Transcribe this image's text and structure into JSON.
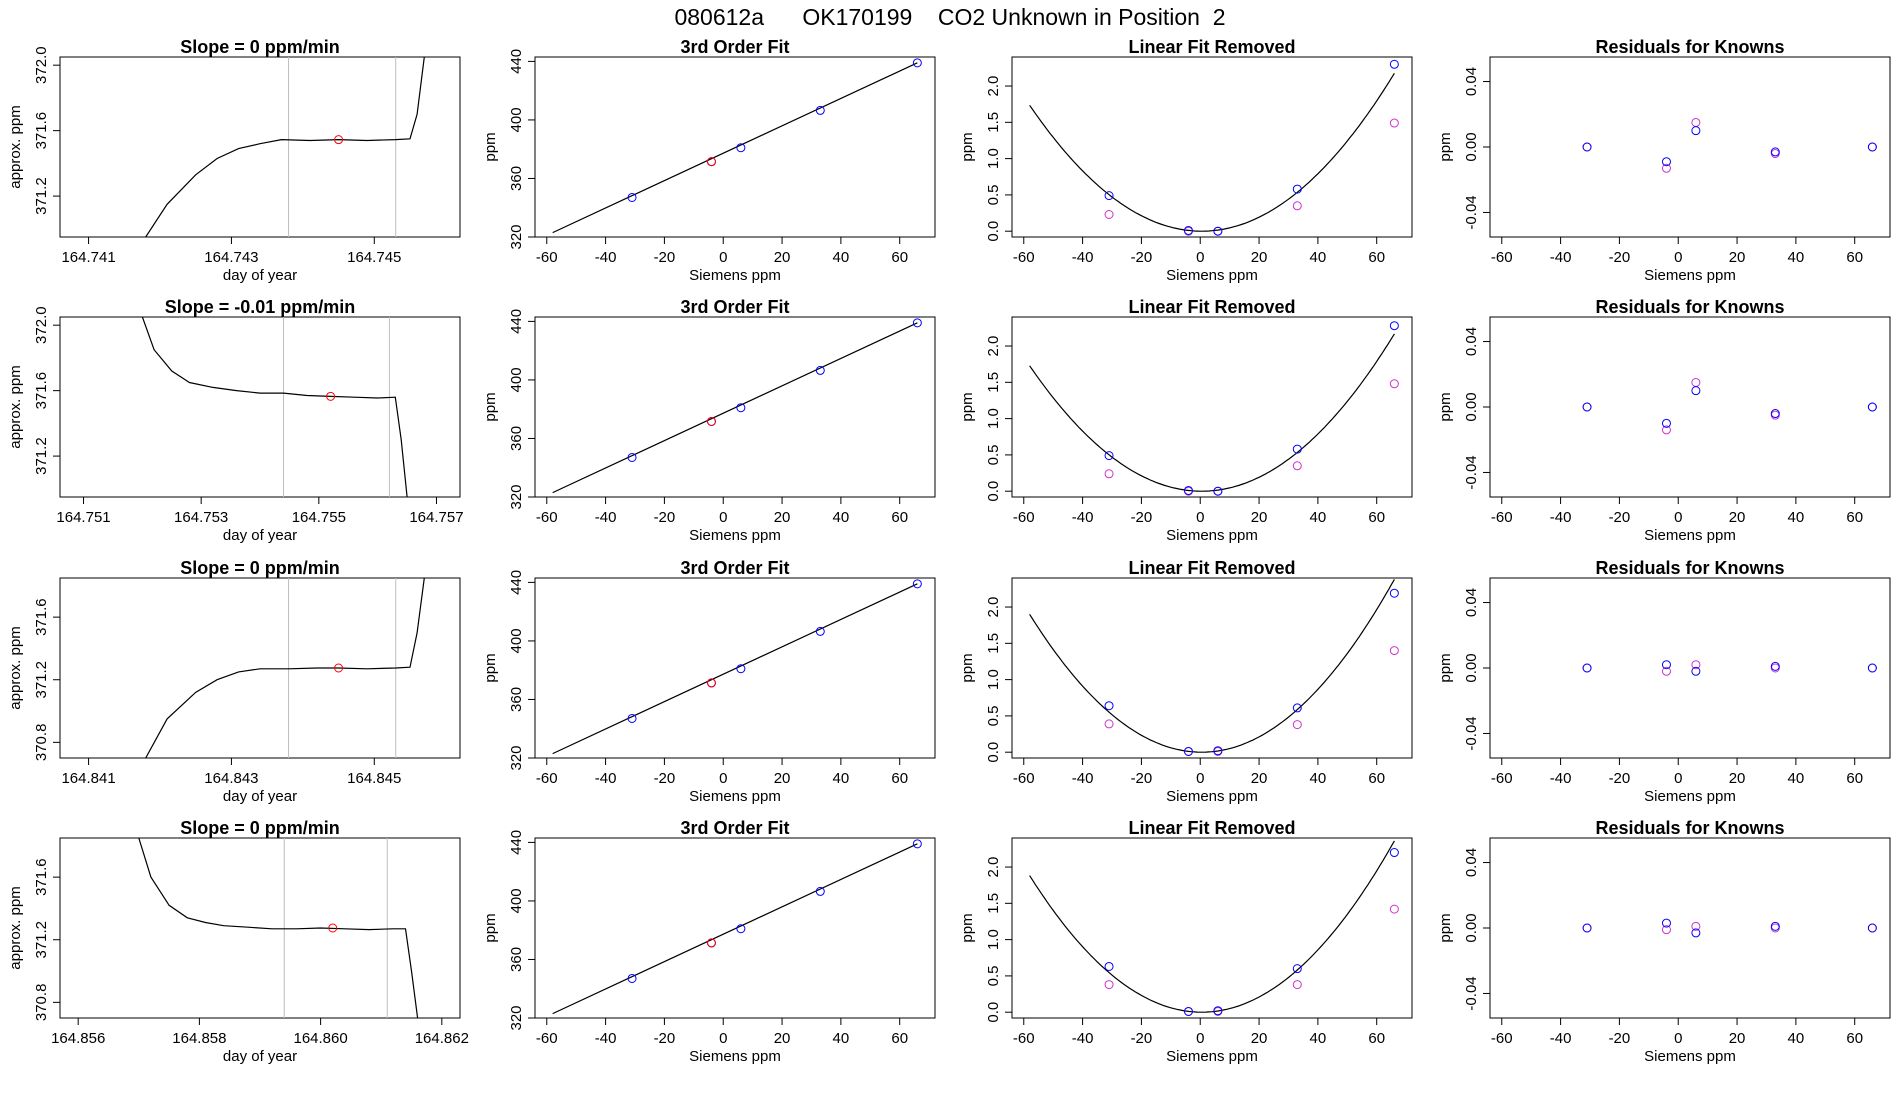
{
  "title": "080612a      OK170199    CO2 Unknown in Position  2",
  "colors": {
    "blue": "#0000ff",
    "magenta": "#cc33cc",
    "red": "#ff0000",
    "vline": "#bebebe",
    "line": "#000000"
  },
  "chart_data": [
    {
      "type": "line",
      "title": "Slope =  0  ppm/min",
      "xlabel": "day of year",
      "ylabel": "approx. ppm",
      "xlim": [
        164.7406,
        164.7462
      ],
      "ylim": [
        370.95,
        372.05
      ],
      "xticks": [
        "164.741",
        "164.743",
        "164.745"
      ],
      "yticks": [
        "371.2",
        "371.6",
        "372.0"
      ],
      "ytick_values": [
        371.2,
        371.6,
        372.0
      ],
      "vlines": [
        164.7438,
        164.7453
      ],
      "marker": {
        "x": 164.7445,
        "y": 371.545
      },
      "trace": [
        [
          164.7418,
          370.95
        ],
        [
          164.7421,
          371.15
        ],
        [
          164.7425,
          371.33
        ],
        [
          164.7428,
          371.43
        ],
        [
          164.7431,
          371.49
        ],
        [
          164.7434,
          371.52
        ],
        [
          164.7437,
          371.545
        ],
        [
          164.7441,
          371.54
        ],
        [
          164.7445,
          371.545
        ],
        [
          164.7449,
          371.54
        ],
        [
          164.7453,
          371.545
        ],
        [
          164.7455,
          371.55
        ],
        [
          164.7456,
          371.7
        ],
        [
          164.7457,
          372.05
        ]
      ]
    },
    {
      "type": "scatter",
      "title": "3rd Order Fit",
      "xlabel": "Siemens ppm",
      "ylabel": "ppm",
      "xlim": [
        -64,
        72
      ],
      "ylim": [
        320,
        443
      ],
      "xticks": [
        "-60",
        "-40",
        "-20",
        "0",
        "20",
        "40",
        "60"
      ],
      "yticks": [
        "320",
        "360",
        "400",
        "440"
      ],
      "fit": [
        [
          -58,
          323
        ],
        [
          66,
          439
        ]
      ],
      "points_blue": [
        [
          -31,
          347
        ],
        [
          -4,
          371.5
        ],
        [
          6,
          381
        ],
        [
          33,
          406.5
        ],
        [
          66,
          439
        ]
      ],
      "points_red": [
        [
          -4,
          371.5
        ]
      ]
    },
    {
      "type": "scatter",
      "title": "Linear Fit Removed",
      "xlabel": "Siemens ppm",
      "ylabel": "ppm",
      "xlim": [
        -64,
        72
      ],
      "ylim": [
        -0.08,
        2.4
      ],
      "xticks": [
        "-60",
        "-40",
        "-20",
        "0",
        "20",
        "40",
        "60"
      ],
      "yticks": [
        "0.0",
        "0.5",
        "1.0",
        "1.5",
        "2.0"
      ],
      "ytick_values": [
        0,
        0.5,
        1.0,
        1.5,
        2.0
      ],
      "curve_vertex": 0.5,
      "curve_a": 0.000507,
      "points_blue": [
        [
          -31,
          0.49
        ],
        [
          -4,
          0.01
        ],
        [
          6,
          0.0
        ],
        [
          33,
          0.58
        ],
        [
          66,
          2.3
        ]
      ],
      "points_magenta": [
        [
          -31,
          0.23
        ],
        [
          -4,
          0.0
        ],
        [
          6,
          0.0
        ],
        [
          33,
          0.35
        ],
        [
          66,
          1.49
        ]
      ]
    },
    {
      "type": "scatter",
      "title": "Residuals for Knowns",
      "xlabel": "Siemens ppm",
      "ylabel": "ppm",
      "xlim": [
        -64,
        72
      ],
      "ylim": [
        -0.055,
        0.055
      ],
      "xticks": [
        "-60",
        "-40",
        "-20",
        "0",
        "20",
        "40",
        "60"
      ],
      "yticks": [
        "-0.04",
        "0.00",
        "0.04"
      ],
      "ytick_values": [
        -0.04,
        0.0,
        0.04
      ],
      "points_blue": [
        [
          -31,
          0.0
        ],
        [
          -4,
          -0.009
        ],
        [
          6,
          0.01
        ],
        [
          33,
          -0.003
        ],
        [
          66,
          0.0
        ]
      ],
      "points_magenta": [
        [
          -31,
          0.0
        ],
        [
          -4,
          -0.013
        ],
        [
          6,
          0.015
        ],
        [
          33,
          -0.004
        ],
        [
          66,
          0.0
        ]
      ]
    },
    {
      "type": "line",
      "title": "Slope =  -0.01  ppm/min",
      "xlabel": "day of year",
      "ylabel": "approx. ppm",
      "xlim": [
        164.7506,
        164.7574
      ],
      "ylim": [
        370.95,
        372.05
      ],
      "xticks": [
        "164.751",
        "164.753",
        "164.755",
        "164.757"
      ],
      "yticks": [
        "371.2",
        "371.6",
        "372.0"
      ],
      "ytick_values": [
        371.2,
        371.6,
        372.0
      ],
      "vlines": [
        164.7544,
        164.7562
      ],
      "marker": {
        "x": 164.7552,
        "y": 371.565
      },
      "trace": [
        [
          164.752,
          372.05
        ],
        [
          164.7522,
          371.85
        ],
        [
          164.7525,
          371.72
        ],
        [
          164.7528,
          371.65
        ],
        [
          164.7532,
          371.62
        ],
        [
          164.7536,
          371.6
        ],
        [
          164.754,
          371.585
        ],
        [
          164.7544,
          371.585
        ],
        [
          164.7548,
          371.57
        ],
        [
          164.7552,
          371.565
        ],
        [
          164.7556,
          371.56
        ],
        [
          164.756,
          371.555
        ],
        [
          164.7563,
          371.56
        ],
        [
          164.7564,
          371.3
        ],
        [
          164.7565,
          370.95
        ]
      ]
    },
    {
      "type": "scatter",
      "title": "3rd Order Fit",
      "xlabel": "Siemens ppm",
      "ylabel": "ppm",
      "xlim": [
        -64,
        72
      ],
      "ylim": [
        320,
        443
      ],
      "xticks": [
        "-60",
        "-40",
        "-20",
        "0",
        "20",
        "40",
        "60"
      ],
      "yticks": [
        "320",
        "360",
        "400",
        "440"
      ],
      "fit": [
        [
          -58,
          323
        ],
        [
          66,
          439
        ]
      ],
      "points_blue": [
        [
          -31,
          347
        ],
        [
          -4,
          371.6
        ],
        [
          6,
          381
        ],
        [
          33,
          406.5
        ],
        [
          66,
          439
        ]
      ],
      "points_red": [
        [
          -4,
          371.6
        ]
      ]
    },
    {
      "type": "scatter",
      "title": "Linear Fit Removed",
      "xlabel": "Siemens ppm",
      "ylabel": "ppm",
      "xlim": [
        -64,
        72
      ],
      "ylim": [
        -0.08,
        2.4
      ],
      "xticks": [
        "-60",
        "-40",
        "-20",
        "0",
        "20",
        "40",
        "60"
      ],
      "yticks": [
        "0.0",
        "0.5",
        "1.0",
        "1.5",
        "2.0"
      ],
      "ytick_values": [
        0,
        0.5,
        1.0,
        1.5,
        2.0
      ],
      "curve_vertex": 0.5,
      "curve_a": 0.000505,
      "points_blue": [
        [
          -31,
          0.49
        ],
        [
          -4,
          0.01
        ],
        [
          6,
          0.0
        ],
        [
          33,
          0.58
        ],
        [
          66,
          2.28
        ]
      ],
      "points_magenta": [
        [
          -31,
          0.24
        ],
        [
          -4,
          0.0
        ],
        [
          6,
          0.0
        ],
        [
          33,
          0.35
        ],
        [
          66,
          1.48
        ]
      ]
    },
    {
      "type": "scatter",
      "title": "Residuals for Knowns",
      "xlabel": "Siemens ppm",
      "ylabel": "ppm",
      "xlim": [
        -64,
        72
      ],
      "ylim": [
        -0.055,
        0.055
      ],
      "xticks": [
        "-60",
        "-40",
        "-20",
        "0",
        "20",
        "40",
        "60"
      ],
      "yticks": [
        "-0.04",
        "0.00",
        "0.04"
      ],
      "ytick_values": [
        -0.04,
        0.0,
        0.04
      ],
      "points_blue": [
        [
          -31,
          0.0
        ],
        [
          -4,
          -0.01
        ],
        [
          6,
          0.01
        ],
        [
          33,
          -0.004
        ],
        [
          66,
          0.0
        ]
      ],
      "points_magenta": [
        [
          -31,
          0.0
        ],
        [
          -4,
          -0.014
        ],
        [
          6,
          0.015
        ],
        [
          33,
          -0.005
        ],
        [
          66,
          0.0
        ]
      ]
    },
    {
      "type": "line",
      "title": "Slope =  0  ppm/min",
      "xlabel": "day of year",
      "ylabel": "approx. ppm",
      "xlim": [
        164.8406,
        164.8462
      ],
      "ylim": [
        370.7,
        371.85
      ],
      "xticks": [
        "164.841",
        "164.843",
        "164.845"
      ],
      "yticks": [
        "370.8",
        "371.2",
        "371.6"
      ],
      "ytick_values": [
        370.8,
        371.2,
        371.6
      ],
      "vlines": [
        164.8438,
        164.8453
      ],
      "marker": {
        "x": 164.8445,
        "y": 371.275
      },
      "trace": [
        [
          164.8418,
          370.7
        ],
        [
          164.8421,
          370.95
        ],
        [
          164.8425,
          371.12
        ],
        [
          164.8428,
          371.2
        ],
        [
          164.8431,
          371.25
        ],
        [
          164.8434,
          371.27
        ],
        [
          164.8438,
          371.27
        ],
        [
          164.8442,
          371.275
        ],
        [
          164.8445,
          371.275
        ],
        [
          164.8449,
          371.27
        ],
        [
          164.8453,
          371.275
        ],
        [
          164.8455,
          371.28
        ],
        [
          164.8456,
          371.5
        ],
        [
          164.8457,
          371.85
        ]
      ]
    },
    {
      "type": "scatter",
      "title": "3rd Order Fit",
      "xlabel": "Siemens ppm",
      "ylabel": "ppm",
      "xlim": [
        -64,
        72
      ],
      "ylim": [
        320,
        443
      ],
      "xticks": [
        "-60",
        "-40",
        "-20",
        "0",
        "20",
        "40",
        "60"
      ],
      "yticks": [
        "320",
        "360",
        "400",
        "440"
      ],
      "fit": [
        [
          -58,
          323
        ],
        [
          66,
          439
        ]
      ],
      "points_blue": [
        [
          -31,
          347
        ],
        [
          -4,
          371.3
        ],
        [
          6,
          381
        ],
        [
          33,
          406.5
        ],
        [
          66,
          439
        ]
      ],
      "points_red": [
        [
          -4,
          371.3
        ]
      ]
    },
    {
      "type": "scatter",
      "title": "Linear Fit Removed",
      "xlabel": "Siemens ppm",
      "ylabel": "ppm",
      "xlim": [
        -64,
        72
      ],
      "ylim": [
        -0.08,
        2.4
      ],
      "xticks": [
        "-60",
        "-40",
        "-20",
        "0",
        "20",
        "40",
        "60"
      ],
      "yticks": [
        "0.0",
        "0.5",
        "1.0",
        "1.5",
        "2.0"
      ],
      "ytick_values": [
        0,
        0.5,
        1.0,
        1.5,
        2.0
      ],
      "curve_vertex": 0.5,
      "curve_a": 0.000555,
      "points_blue": [
        [
          -31,
          0.64
        ],
        [
          -4,
          0.01
        ],
        [
          6,
          0.02
        ],
        [
          33,
          0.61
        ],
        [
          66,
          2.19
        ]
      ],
      "points_magenta": [
        [
          -31,
          0.39
        ],
        [
          -4,
          0.01
        ],
        [
          6,
          0.01
        ],
        [
          33,
          0.38
        ],
        [
          66,
          1.4
        ]
      ]
    },
    {
      "type": "scatter",
      "title": "Residuals for Knowns",
      "xlabel": "Siemens ppm",
      "ylabel": "ppm",
      "xlim": [
        -64,
        72
      ],
      "ylim": [
        -0.055,
        0.055
      ],
      "xticks": [
        "-60",
        "-40",
        "-20",
        "0",
        "20",
        "40",
        "60"
      ],
      "yticks": [
        "-0.04",
        "0.00",
        "0.04"
      ],
      "ytick_values": [
        -0.04,
        0.0,
        0.04
      ],
      "points_blue": [
        [
          -31,
          0.0
        ],
        [
          -4,
          0.002
        ],
        [
          6,
          -0.002
        ],
        [
          33,
          0.001
        ],
        [
          66,
          0.0
        ]
      ],
      "points_magenta": [
        [
          -31,
          0.0
        ],
        [
          -4,
          -0.002
        ],
        [
          6,
          0.002
        ],
        [
          33,
          0.0
        ],
        [
          66,
          0.0
        ]
      ]
    },
    {
      "type": "line",
      "title": "Slope =  0  ppm/min",
      "xlabel": "day of year",
      "ylabel": "approx. ppm",
      "xlim": [
        164.8557,
        164.8623
      ],
      "ylim": [
        370.7,
        371.85
      ],
      "xticks": [
        "164.856",
        "164.858",
        "164.860",
        "164.862"
      ],
      "yticks": [
        "370.8",
        "371.2",
        "371.6"
      ],
      "ytick_values": [
        370.8,
        371.2,
        371.6
      ],
      "vlines": [
        164.8594,
        164.8611
      ],
      "marker": {
        "x": 164.8602,
        "y": 371.275
      },
      "trace": [
        [
          164.857,
          371.85
        ],
        [
          164.8572,
          371.6
        ],
        [
          164.8575,
          371.42
        ],
        [
          164.8578,
          371.34
        ],
        [
          164.8581,
          371.31
        ],
        [
          164.8584,
          371.29
        ],
        [
          164.8588,
          371.28
        ],
        [
          164.8592,
          371.27
        ],
        [
          164.8596,
          371.27
        ],
        [
          164.86,
          371.275
        ],
        [
          164.8604,
          371.27
        ],
        [
          164.8608,
          371.265
        ],
        [
          164.8612,
          371.27
        ],
        [
          164.8614,
          371.27
        ],
        [
          164.8615,
          371.0
        ],
        [
          164.8616,
          370.7
        ]
      ]
    },
    {
      "type": "scatter",
      "title": "3rd Order Fit",
      "xlabel": "Siemens ppm",
      "ylabel": "ppm",
      "xlim": [
        -64,
        72
      ],
      "ylim": [
        320,
        443
      ],
      "xticks": [
        "-60",
        "-40",
        "-20",
        "0",
        "20",
        "40",
        "60"
      ],
      "yticks": [
        "320",
        "360",
        "400",
        "440"
      ],
      "fit": [
        [
          -58,
          323
        ],
        [
          66,
          439
        ]
      ],
      "points_blue": [
        [
          -31,
          347
        ],
        [
          -4,
          371.3
        ],
        [
          6,
          381
        ],
        [
          33,
          406.5
        ],
        [
          66,
          439
        ]
      ],
      "points_red": [
        [
          -4,
          371.3
        ]
      ]
    },
    {
      "type": "scatter",
      "title": "Linear Fit Removed",
      "xlabel": "Siemens ppm",
      "ylabel": "ppm",
      "xlim": [
        -64,
        72
      ],
      "ylim": [
        -0.08,
        2.4
      ],
      "xticks": [
        "-60",
        "-40",
        "-20",
        "0",
        "20",
        "40",
        "60"
      ],
      "yticks": [
        "0.0",
        "0.5",
        "1.0",
        "1.5",
        "2.0"
      ],
      "ytick_values": [
        0,
        0.5,
        1.0,
        1.5,
        2.0
      ],
      "curve_vertex": 0.5,
      "curve_a": 0.00055,
      "points_blue": [
        [
          -31,
          0.63
        ],
        [
          -4,
          0.01
        ],
        [
          6,
          0.02
        ],
        [
          33,
          0.6
        ],
        [
          66,
          2.2
        ]
      ],
      "points_magenta": [
        [
          -31,
          0.38
        ],
        [
          -4,
          0.01
        ],
        [
          6,
          0.01
        ],
        [
          33,
          0.38
        ],
        [
          66,
          1.42
        ]
      ]
    },
    {
      "type": "scatter",
      "title": "Residuals for Knowns",
      "xlabel": "Siemens ppm",
      "ylabel": "ppm",
      "xlim": [
        -64,
        72
      ],
      "ylim": [
        -0.055,
        0.055
      ],
      "xticks": [
        "-60",
        "-40",
        "-20",
        "0",
        "20",
        "40",
        "60"
      ],
      "yticks": [
        "-0.04",
        "0.00",
        "0.04"
      ],
      "ytick_values": [
        -0.04,
        0.0,
        0.04
      ],
      "points_blue": [
        [
          -31,
          0.0
        ],
        [
          -4,
          0.003
        ],
        [
          6,
          -0.003
        ],
        [
          33,
          0.001
        ],
        [
          66,
          0.0
        ]
      ],
      "points_magenta": [
        [
          -31,
          0.0
        ],
        [
          -4,
          -0.001
        ],
        [
          6,
          0.001
        ],
        [
          33,
          0.0
        ],
        [
          66,
          0.0
        ]
      ]
    }
  ]
}
